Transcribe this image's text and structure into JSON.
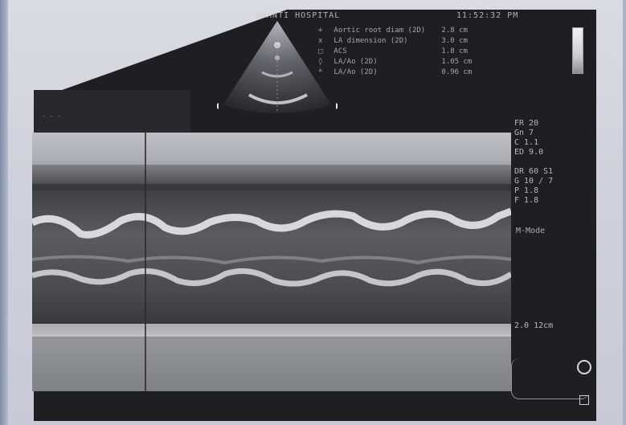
{
  "header": {
    "hospital": "SHANTI HOSPITAL",
    "time": "11:52:32 PM"
  },
  "measurements": [
    {
      "marker": "+",
      "label": "Aortic root diam (2D)",
      "value": "2.8 cm"
    },
    {
      "marker": "x",
      "label": "LA dimension (2D)",
      "value": "3.0 cm"
    },
    {
      "marker": "□",
      "label": "ACS",
      "value": "1.8 cm"
    },
    {
      "marker": "◊",
      "label": "LA/Ao (2D)",
      "value": "1.05 cm"
    },
    {
      "marker": "*",
      "label": "LA/Ao (2D)",
      "value": "0.96 cm"
    }
  ],
  "info_panel": [
    "FR 20",
    "Gn 7",
    "C 1.1",
    "ED 9.0",
    "",
    "DR  60 S1",
    "G 10 / 7",
    "P 1.8",
    "F 1.8"
  ],
  "mode": "M-Mode",
  "sweep_speed": "2.0  12cm",
  "colors": {
    "film": "#1d1f23",
    "mmode_bg": "#3a3b3e",
    "echo_bright": "#e6e7ea",
    "paper": "#d9dbe4"
  },
  "icons": [
    "grayscale-bar-icon",
    "probe-orientation-icon",
    "ecg-lead-icon"
  ]
}
